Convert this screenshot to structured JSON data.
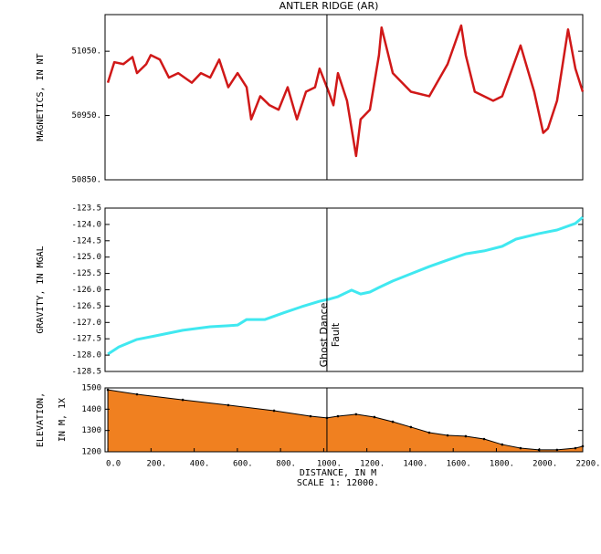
{
  "chart_data": [
    {
      "type": "line",
      "title": "ANTLER RIDGE (AR)",
      "ylabel": [
        "MAGNETICS, IN NT"
      ],
      "xlim": [
        -13,
        2200
      ],
      "ylim": [
        50850,
        51107
      ],
      "yticks": [
        {
          "value": 50850,
          "label": "50850."
        },
        {
          "value": 50950,
          "label": "50950."
        },
        {
          "value": 51050,
          "label": "51050."
        }
      ],
      "series": [
        {
          "name": "Magnetics",
          "color": "#d01818",
          "x": [
            0,
            30,
            72,
            114,
            135,
            178,
            199,
            241,
            283,
            326,
            389,
            431,
            474,
            516,
            558,
            601,
            643,
            664,
            706,
            749,
            791,
            833,
            876,
            918,
            960,
            981,
            1023,
            1045,
            1066,
            1108,
            1129,
            1150,
            1171,
            1214,
            1256,
            1268,
            1320,
            1404,
            1489,
            1574,
            1637,
            1658,
            1700,
            1785,
            1827,
            1912,
            1975,
            2017,
            2039,
            2081,
            2132,
            2166,
            2200
          ],
          "values": [
            51001,
            51033,
            51030,
            51041,
            51016,
            51030,
            51044,
            51037,
            51009,
            51016,
            51001,
            51016,
            51009,
            51037,
            50994,
            51016,
            50994,
            50944,
            50980,
            50966,
            50959,
            50994,
            50944,
            50987,
            50994,
            51023,
            50987,
            50966,
            51016,
            50973,
            50930,
            50887,
            50944,
            50959,
            51044,
            51087,
            51016,
            50987,
            50980,
            51030,
            51090,
            51044,
            50987,
            50973,
            50980,
            51059,
            50987,
            50923,
            50930,
            50973,
            51084,
            51023,
            50987
          ]
        }
      ]
    },
    {
      "type": "line",
      "ylabel": [
        "GRAVITY, IN MGAL"
      ],
      "xlim": [
        -13,
        2200
      ],
      "ylim": [
        -128.5,
        -123.5
      ],
      "yticks": [
        -128.5,
        {
          "value": -128,
          "label": "-128.0"
        },
        -127.5,
        {
          "value": -127,
          "label": "-127.0"
        },
        -126.5,
        {
          "value": -126,
          "label": "-126.0"
        },
        -125.5,
        {
          "value": -125,
          "label": "-125.0"
        },
        -124.5,
        {
          "value": -124,
          "label": "-124.0"
        },
        -123.5
      ],
      "annotation": {
        "x": 1015,
        "text": [
          "Ghost Dance",
          "Fault"
        ]
      },
      "series": [
        {
          "name": "Gravity",
          "color": "#40e8f0",
          "x": [
            0,
            51,
            135,
            220,
            347,
            474,
            558,
            601,
            643,
            728,
            812,
            897,
            981,
            1023,
            1066,
            1129,
            1171,
            1214,
            1256,
            1320,
            1404,
            1489,
            1574,
            1658,
            1743,
            1827,
            1891,
            1997,
            2081,
            2166,
            2200
          ],
          "values": [
            -127.97,
            -127.75,
            -127.52,
            -127.41,
            -127.24,
            -127.13,
            -127.1,
            -127.08,
            -126.91,
            -126.91,
            -126.71,
            -126.52,
            -126.35,
            -126.29,
            -126.21,
            -126.01,
            -126.13,
            -126.07,
            -125.93,
            -125.73,
            -125.51,
            -125.29,
            -125.09,
            -124.9,
            -124.81,
            -124.67,
            -124.45,
            -124.28,
            -124.17,
            -123.97,
            -123.78
          ]
        }
      ]
    },
    {
      "type": "area",
      "ylabel": [
        "ELEVATION,",
        "IN M, 1X"
      ],
      "xlabel": "DISTANCE, IN M",
      "note": "SCALE 1: 12000.",
      "xlim": [
        -13,
        2200
      ],
      "ylim": [
        1200,
        1500
      ],
      "xticks": [
        {
          "value": 0,
          "label": "0.0"
        },
        {
          "value": 200,
          "label": "200."
        },
        {
          "value": 400,
          "label": "400."
        },
        {
          "value": 600,
          "label": "600."
        },
        {
          "value": 800,
          "label": "800."
        },
        {
          "value": 1000,
          "label": "1000."
        },
        {
          "value": 1200,
          "label": "1200."
        },
        {
          "value": 1400,
          "label": "1400."
        },
        {
          "value": 1600,
          "label": "1600."
        },
        {
          "value": 1800,
          "label": "1800."
        },
        {
          "value": 2000,
          "label": "2000."
        },
        {
          "value": 2200,
          "label": "2200."
        }
      ],
      "yticks": [
        1200,
        1300,
        1400,
        1500
      ],
      "series": [
        {
          "name": "Elevation",
          "color": "#f08020",
          "x": [
            0,
            135,
            347,
            558,
            770,
            939,
            1015,
            1066,
            1150,
            1235,
            1320,
            1404,
            1489,
            1574,
            1658,
            1743,
            1827,
            1912,
            1997,
            2081,
            2166,
            2200
          ],
          "values": [
            1491,
            1470,
            1444,
            1419,
            1393,
            1367,
            1359,
            1367,
            1376,
            1363,
            1341,
            1316,
            1290,
            1277,
            1273,
            1260,
            1234,
            1217,
            1209,
            1209,
            1217,
            1226
          ]
        }
      ]
    }
  ]
}
